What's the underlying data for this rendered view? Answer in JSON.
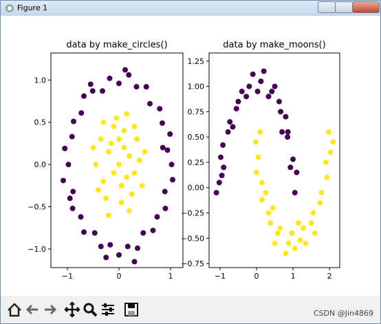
{
  "window": {
    "title": "Figure 1"
  },
  "watermark": "CSDN @Jin4869",
  "chart_data": [
    {
      "type": "scatter",
      "title": "data by make_circles()",
      "xlim": [
        -1.32,
        1.24
      ],
      "ylim": [
        -1.22,
        1.32
      ],
      "xticks": [
        {
          "value": -1,
          "label": "−1"
        },
        0,
        1
      ],
      "yticks": [
        {
          "value": -1,
          "label": "−1.0"
        },
        {
          "value": -0.5,
          "label": "−0.5"
        },
        {
          "value": 0,
          "label": "0.0"
        },
        0.5,
        {
          "value": 1,
          "label": "1.0"
        }
      ],
      "series": [
        {
          "color": "#440154",
          "x": [
            1.02,
            0.94,
            0.99,
            0.84,
            0.79,
            0.6,
            0.53,
            0.34,
            0.19,
            0.0,
            -0.18,
            -0.32,
            -0.51,
            -0.68,
            -0.73,
            -0.88,
            -0.91,
            -1.05,
            -0.98,
            -1.08,
            -0.89,
            -0.9,
            -0.74,
            -0.68,
            -0.47,
            -0.35,
            -0.17,
            0.0,
            0.17,
            0.36,
            0.47,
            0.66,
            0.74,
            0.9,
            0.89,
            1.04,
            0.12,
            -0.55,
            0.85,
            -0.95,
            0.3,
            -0.25
          ],
          "values": [
            0.0,
            0.17,
            0.36,
            0.49,
            0.66,
            0.72,
            0.92,
            0.92,
            1.06,
            0.96,
            1.02,
            0.87,
            0.87,
            0.81,
            0.61,
            0.51,
            0.33,
            0.19,
            0.0,
            -0.19,
            -0.32,
            -0.52,
            -0.62,
            -0.8,
            -0.81,
            -0.97,
            -0.95,
            -1.07,
            -0.97,
            -0.99,
            -0.81,
            -0.78,
            -0.62,
            -0.52,
            -0.32,
            -0.18,
            1.12,
            0.95,
            0.2,
            -0.4,
            -1.15,
            -1.1
          ]
        },
        {
          "color": "#fde725",
          "x": [
            0.0,
            0.2,
            -0.2,
            0.3,
            -0.3,
            0.1,
            -0.1,
            0.35,
            -0.35,
            0.25,
            -0.25,
            0.05,
            0.4,
            -0.45,
            0.15,
            -0.1,
            0.1,
            -0.15,
            0.3,
            -0.05,
            0.2,
            -0.2,
            0.45,
            -0.4,
            0.0,
            0.05,
            -0.5,
            0.5,
            0.15,
            -0.3
          ],
          "values": [
            0.0,
            0.1,
            0.15,
            -0.1,
            -0.2,
            0.4,
            0.45,
            0.3,
            0.3,
            -0.35,
            -0.4,
            -0.45,
            0.05,
            0.0,
            -0.15,
            -0.1,
            0.2,
            0.25,
            0.45,
            0.55,
            -0.55,
            -0.6,
            -0.25,
            -0.3,
            0.3,
            -0.25,
            0.2,
            0.15,
            0.6,
            0.5
          ]
        }
      ]
    },
    {
      "type": "scatter",
      "title": "data by make_moons()",
      "xlim": [
        -1.3,
        2.28
      ],
      "ylim": [
        -0.79,
        1.33
      ],
      "xticks": [
        {
          "value": -1,
          "label": "−1"
        },
        0,
        1,
        2
      ],
      "yticks": [
        {
          "value": -0.75,
          "label": "−0.75"
        },
        {
          "value": -0.5,
          "label": "−0.50"
        },
        {
          "value": -0.25,
          "label": "−0.25"
        },
        {
          "value": 0,
          "label": "0.00"
        },
        0.25,
        {
          "value": 0.5,
          "label": "0.50"
        },
        0.75,
        {
          "value": 1,
          "label": "1.00"
        },
        1.25
      ],
      "series": [
        {
          "color": "#440154",
          "x": [
            1.05,
            0.93,
            1.0,
            0.85,
            0.86,
            0.66,
            0.62,
            0.42,
            0.33,
            0.12,
            0.03,
            -0.2,
            -0.28,
            -0.5,
            -0.55,
            -0.73,
            -0.78,
            -0.92,
            -0.98,
            -0.95,
            -1.02,
            0.2,
            -0.1,
            0.5,
            -0.4,
            0.8,
            -0.9,
            1.1,
            0.7,
            -0.65,
            -1.1
          ],
          "values": [
            -0.05,
            0.2,
            0.28,
            0.5,
            0.55,
            0.75,
            0.85,
            0.95,
            0.9,
            1.05,
            0.95,
            1.0,
            0.9,
            0.85,
            0.78,
            0.65,
            0.55,
            0.42,
            0.3,
            0.12,
            0.05,
            1.15,
            1.12,
            1.0,
            0.95,
            0.7,
            0.2,
            0.15,
            0.55,
            0.6,
            -0.05
          ]
        },
        {
          "color": "#fde725",
          "x": [
            -0.02,
            0.05,
            0.0,
            0.15,
            0.15,
            0.33,
            0.38,
            0.58,
            0.65,
            0.88,
            0.97,
            1.2,
            1.28,
            1.5,
            1.55,
            1.74,
            1.78,
            1.93,
            1.9,
            2.03,
            1.98,
            0.1,
            0.25,
            0.5,
            0.8,
            1.05,
            1.35,
            1.6,
            2.1,
            0.45,
            1.15
          ],
          "values": [
            0.45,
            0.3,
            0.15,
            0.05,
            -0.12,
            -0.25,
            -0.35,
            -0.45,
            -0.4,
            -0.55,
            -0.45,
            -0.52,
            -0.4,
            -0.35,
            -0.25,
            -0.15,
            -0.05,
            0.1,
            0.25,
            0.35,
            0.55,
            0.55,
            -0.05,
            -0.55,
            -0.65,
            -0.6,
            -0.55,
            -0.45,
            0.45,
            -0.2,
            -0.35
          ]
        }
      ]
    }
  ]
}
